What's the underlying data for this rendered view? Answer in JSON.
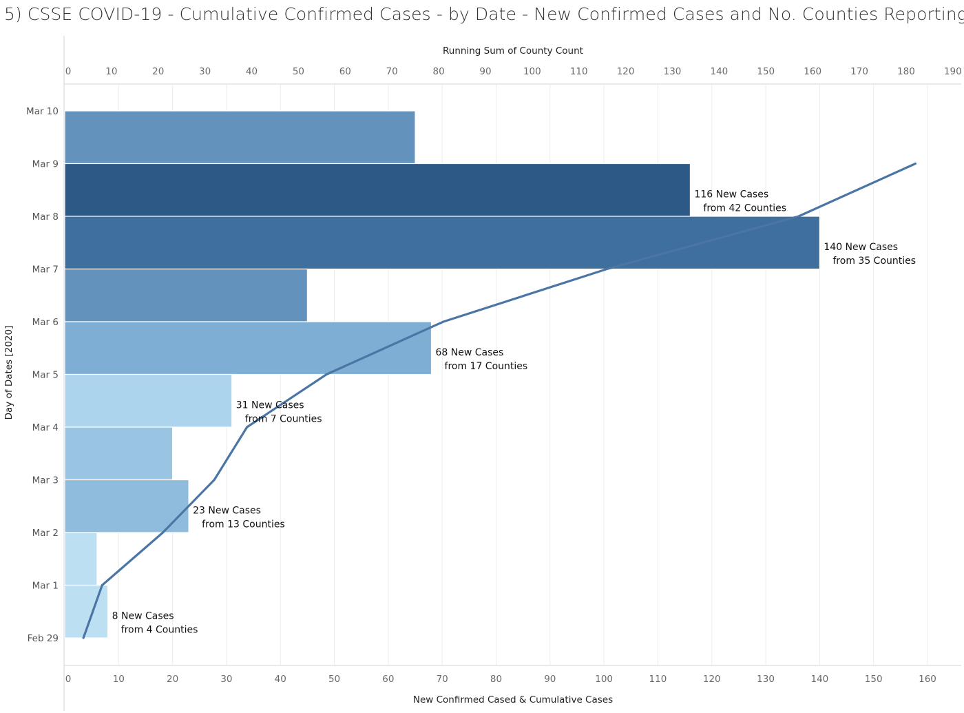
{
  "title": "5) CSSE COVID-19 - Cumulative Confirmed Cases - by Date - New Confirmed Cases and No. Counties Reporting",
  "chart_data": {
    "type": "bar",
    "orientation": "horizontal",
    "title": "5) CSSE COVID-19 - Cumulative Confirmed Cases - by Date - New Confirmed Cases and No. Counties Reporting",
    "ylabel": "Day of Dates [2020]",
    "xlabel_bottom": "New Confirmed Cased & Cumulative Cases",
    "xlabel_top": "Running Sum of County Count",
    "categories": [
      "Mar 10",
      "Mar 9",
      "Mar 8",
      "Mar 7",
      "Mar 6",
      "Mar 5",
      "Mar 4",
      "Mar 3",
      "Mar 2",
      "Mar 1",
      "Feb 29"
    ],
    "x_bottom_ticks": [
      0,
      10,
      20,
      30,
      40,
      50,
      60,
      70,
      80,
      90,
      100,
      110,
      120,
      130,
      140,
      150,
      160
    ],
    "x_top_ticks": [
      0,
      10,
      20,
      30,
      40,
      50,
      60,
      70,
      80,
      90,
      100,
      110,
      120,
      130,
      140,
      150,
      160,
      170,
      180,
      190
    ],
    "xlim_bottom": [
      0,
      166
    ],
    "xlim_top": [
      0,
      191.5
    ],
    "bars": [
      {
        "label": "Mar 10",
        "value": 65,
        "color": "#6393bd"
      },
      {
        "label": "Mar 9",
        "value": 116,
        "color": "#2c5985"
      },
      {
        "label": "Mar 8",
        "value": 140,
        "color": "#3f6f9c"
      },
      {
        "label": "Mar 7",
        "value": 45,
        "color": "#6393bd"
      },
      {
        "label": "Mar 6",
        "value": 68,
        "color": "#7eaed4"
      },
      {
        "label": "Mar 5",
        "value": 31,
        "color": "#acd4ec"
      },
      {
        "label": "Mar 4",
        "value": 20,
        "color": "#9ac5e2"
      },
      {
        "label": "Mar 3",
        "value": 23,
        "color": "#8fbcdd"
      },
      {
        "label": "Mar 2",
        "value": 6,
        "color": "#bcdff2"
      },
      {
        "label": "Mar 1",
        "value": 8,
        "color": "#bcdff2"
      }
    ],
    "bar_labels": [
      {
        "label": "Mar 9",
        "value": 116,
        "line1": "116 New Cases",
        "line2": "from 42 Counties"
      },
      {
        "label": "Mar 8",
        "value": 140,
        "line1": "140 New Cases",
        "line2": "from 35 Counties"
      },
      {
        "label": "Mar 6",
        "value": 68,
        "line1": "68 New Cases",
        "line2": "from 17 Counties"
      },
      {
        "label": "Mar 5",
        "value": 31,
        "line1": "31 New Cases",
        "line2": "from 7 Counties"
      },
      {
        "label": "Mar 3",
        "value": 23,
        "line1": "23 New Cases",
        "line2": "from 13 Counties"
      },
      {
        "label": "Mar 1",
        "value": 8,
        "line1": "8 New Cases",
        "line2": "from 4 Counties"
      }
    ],
    "running_county_count": {
      "name": "Running Sum of County Count",
      "color": "#4a75a4",
      "points": [
        {
          "date": "Feb 29",
          "value": 4
        },
        {
          "date": "Mar 1",
          "value": 8
        },
        {
          "date": "Mar 2",
          "value": 21
        },
        {
          "date": "Mar 3",
          "value": 32
        },
        {
          "date": "Mar 4",
          "value": 39
        },
        {
          "date": "Mar 5",
          "value": 56
        },
        {
          "date": "Mar 6",
          "value": 81
        },
        {
          "date": "Mar 7",
          "value": 116
        },
        {
          "date": "Mar 8",
          "value": 157
        },
        {
          "date": "Mar 9",
          "value": 182
        }
      ]
    }
  }
}
